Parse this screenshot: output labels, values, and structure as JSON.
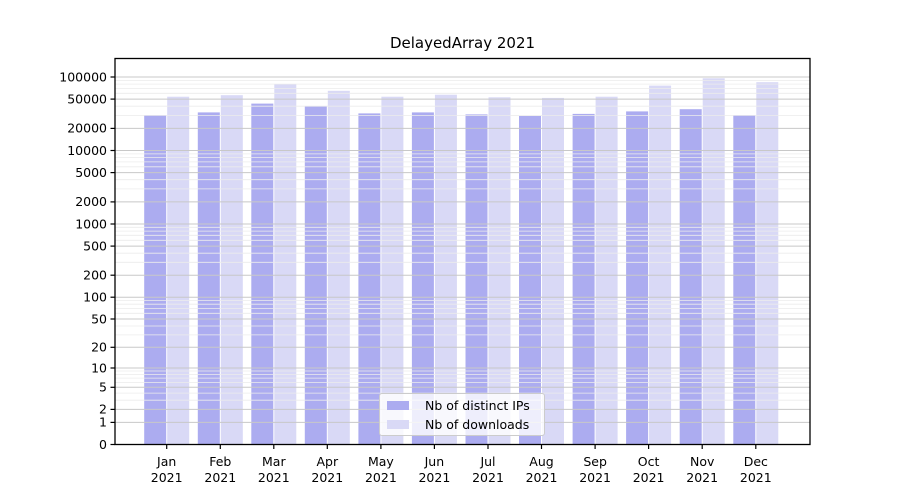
{
  "title": "DelayedArray 2021",
  "colors": {
    "distinct_ips": "#acacf0",
    "downloads": "#d9d9f6",
    "grid_major": "#c8c8c8",
    "grid_minor": "#ececec",
    "axis": "#000000",
    "text": "#000000",
    "legend_border": "#cccccc"
  },
  "legend": {
    "entries": [
      {
        "label": "Nb of distinct IPs",
        "color_key": "distinct_ips"
      },
      {
        "label": "Nb of downloads",
        "color_key": "downloads"
      }
    ]
  },
  "chart_data": {
    "type": "bar",
    "title": "DelayedArray 2021",
    "x_months": [
      "Jan",
      "Feb",
      "Mar",
      "Apr",
      "May",
      "Jun",
      "Jul",
      "Aug",
      "Sep",
      "Oct",
      "Nov",
      "Dec"
    ],
    "x_year": "2021",
    "series": [
      {
        "name": "Nb of distinct IPs",
        "color_key": "distinct_ips",
        "values": [
          30000,
          33000,
          43500,
          40000,
          32000,
          33000,
          31000,
          29500,
          31500,
          34000,
          36500,
          30000
        ]
      },
      {
        "name": "Nb of downloads",
        "color_key": "downloads",
        "values": [
          54000,
          56500,
          79000,
          65000,
          54000,
          57500,
          53000,
          52000,
          54000,
          76500,
          96000,
          85000
        ]
      }
    ],
    "yscale": "log1p",
    "yticks": [
      0,
      1,
      2,
      5,
      10,
      20,
      50,
      100,
      200,
      500,
      1000,
      2000,
      5000,
      10000,
      20000,
      50000,
      100000
    ],
    "minor_tick_pattern": [
      3,
      4,
      6,
      7,
      8,
      9
    ],
    "ylim": [
      0,
      180000
    ],
    "grid": true,
    "legend_position": "lower center"
  }
}
